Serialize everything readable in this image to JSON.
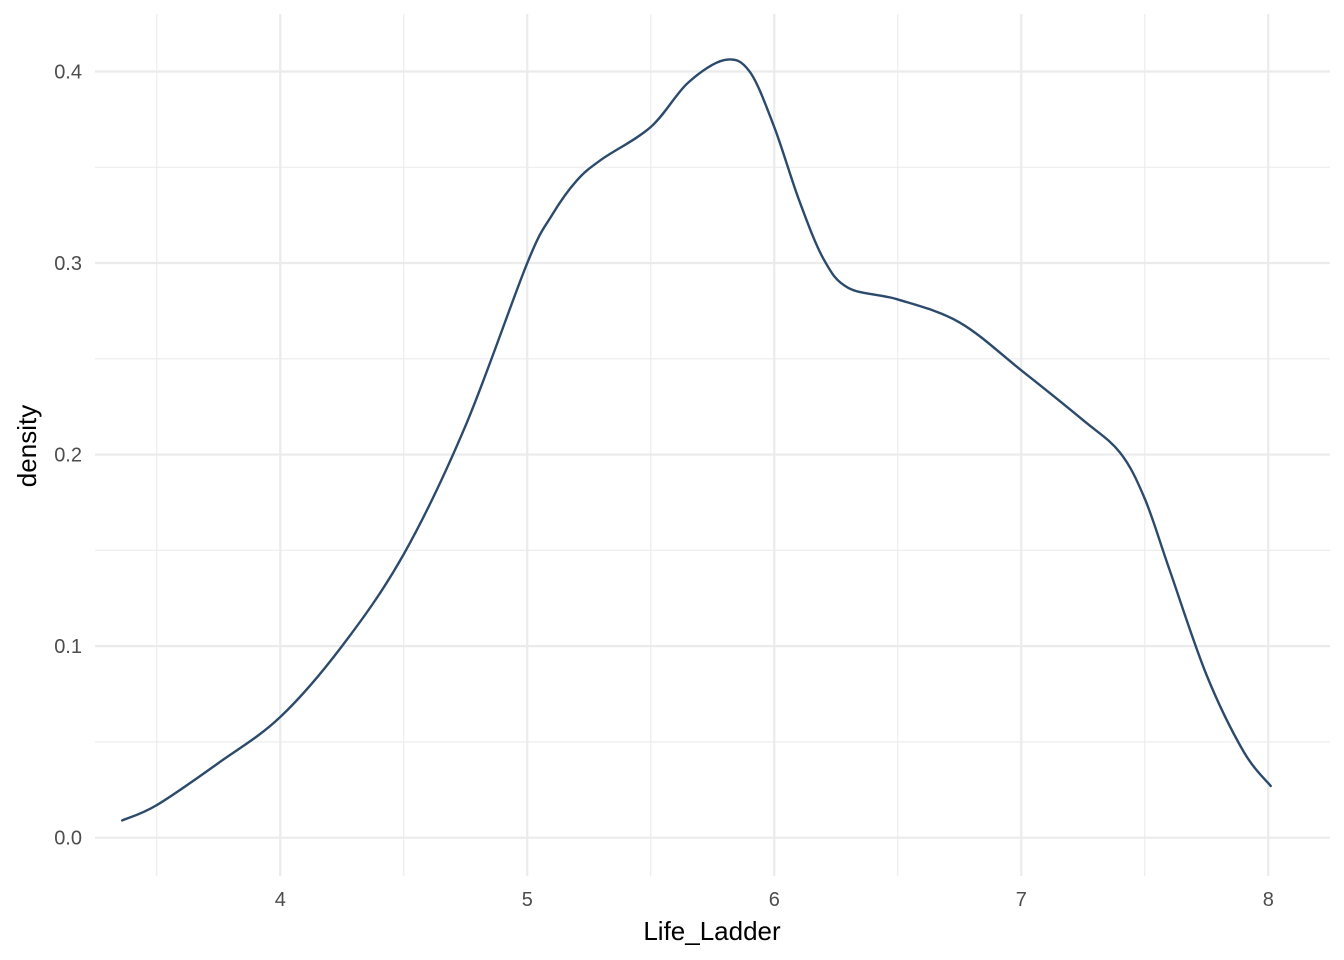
{
  "chart_data": {
    "type": "line",
    "title": "",
    "xlabel": "Life_Ladder",
    "ylabel": "density",
    "xlim": [
      3.25,
      8.25
    ],
    "ylim": [
      -0.02,
      0.43
    ],
    "x_ticks": [
      4,
      5,
      6,
      7,
      8
    ],
    "x_tick_labels": [
      "4",
      "5",
      "6",
      "7",
      "8"
    ],
    "y_ticks": [
      0.0,
      0.1,
      0.2,
      0.3,
      0.4
    ],
    "y_tick_labels": [
      "0.0",
      "0.1",
      "0.2",
      "0.3",
      "0.4"
    ],
    "x_minor_ticks": [
      3.5,
      4.5,
      5.5,
      6.5,
      7.5
    ],
    "y_minor_ticks": [
      0.05,
      0.15,
      0.25,
      0.35
    ],
    "grid": true,
    "legend": "none",
    "line_color": "#2c4a6b",
    "series": [
      {
        "x": [
          3.36,
          3.5,
          3.75,
          4.0,
          4.25,
          4.5,
          4.75,
          5.0,
          5.1,
          5.2,
          5.3,
          5.5,
          5.65,
          5.8,
          5.9,
          6.0,
          6.1,
          6.2,
          6.3,
          6.5,
          6.75,
          7.0,
          7.25,
          7.4,
          7.5,
          7.6,
          7.75,
          7.9,
          8.01
        ],
        "y": [
          0.009,
          0.017,
          0.039,
          0.063,
          0.1,
          0.148,
          0.215,
          0.3,
          0.325,
          0.343,
          0.354,
          0.371,
          0.394,
          0.406,
          0.4,
          0.371,
          0.333,
          0.302,
          0.287,
          0.281,
          0.269,
          0.244,
          0.218,
          0.201,
          0.177,
          0.14,
          0.085,
          0.045,
          0.027
        ]
      }
    ]
  }
}
